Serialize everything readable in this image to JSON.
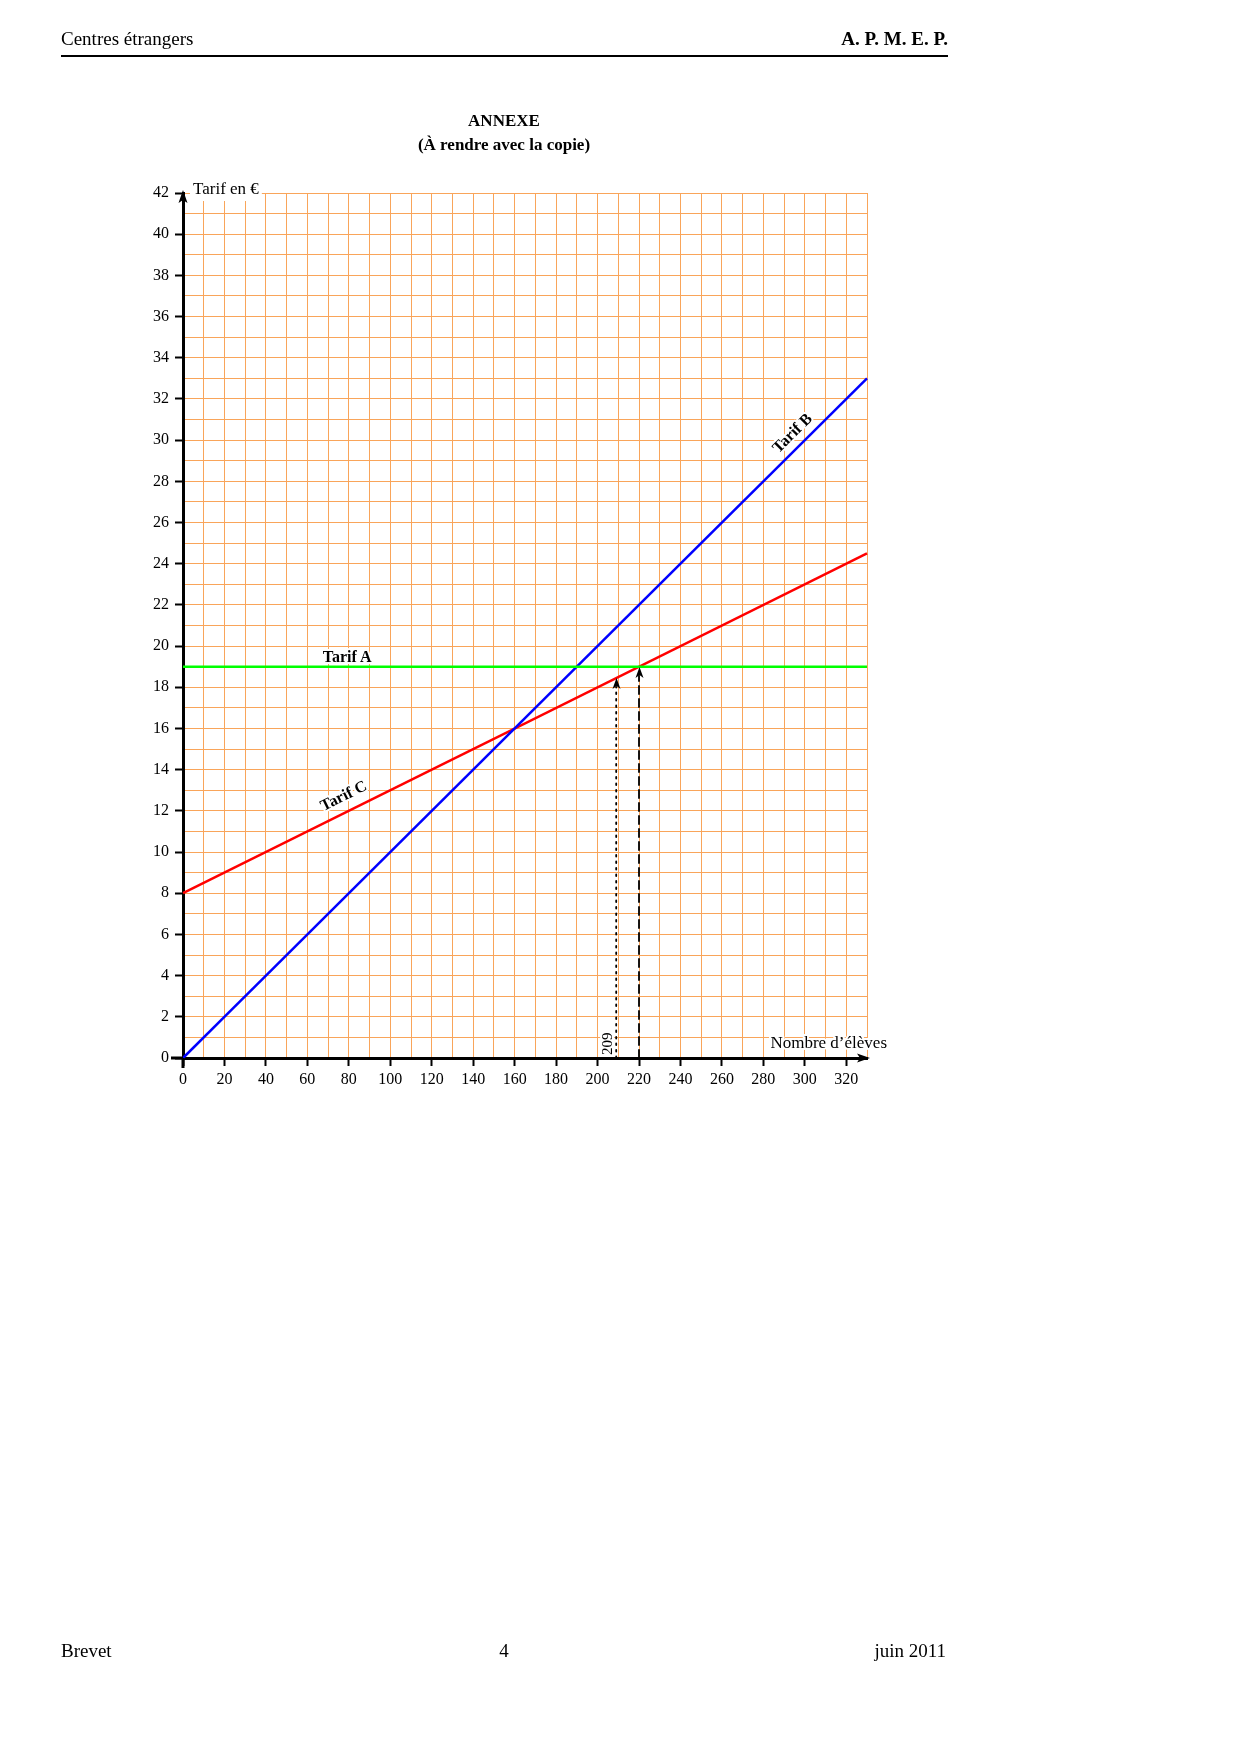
{
  "chart_data": {
    "type": "line",
    "title": "ANNEXE",
    "subtitle": "(À rendre avec la copie)",
    "xlabel": "Nombre d’élèves",
    "ylabel": "Tarif en €",
    "annotations": [
      "Centres étrangers",
      "A. P. M. E. P.",
      "Brevet",
      "4",
      "juin 2011"
    ],
    "x": [
      0,
      330
    ],
    "series": [
      {
        "name": "Tarif A",
        "color": "#00ff00",
        "values": [
          19,
          19
        ]
      },
      {
        "name": "Tarif B",
        "color": "#0000ff",
        "values": [
          0,
          33
        ]
      },
      {
        "name": "Tarif C",
        "color": "#ff0000",
        "values": [
          8,
          24.5
        ]
      }
    ],
    "xlim": [
      0,
      330
    ],
    "ylim": [
      0,
      42
    ],
    "xticks": [
      0,
      {
        "value": 10,
        "label": null
      },
      20,
      {
        "value": 30,
        "label": null
      },
      40,
      {
        "value": 50,
        "label": null
      },
      60,
      {
        "value": 70,
        "label": null
      },
      80,
      {
        "value": 90,
        "label": null
      },
      100,
      {
        "value": 110,
        "label": null
      },
      120,
      {
        "value": 130,
        "label": null
      },
      140,
      {
        "value": 150,
        "label": null
      },
      160,
      {
        "value": 170,
        "label": null
      },
      180,
      {
        "value": 190,
        "label": null
      },
      200,
      {
        "value": 210,
        "label": null
      },
      220,
      {
        "value": 230,
        "label": null
      },
      240,
      {
        "value": 250,
        "label": null
      },
      260,
      {
        "value": 270,
        "label": null
      },
      280,
      {
        "value": 290,
        "label": null
      },
      300,
      {
        "value": 310,
        "label": null
      },
      320,
      {
        "value": 330,
        "label": null
      }
    ],
    "yticks": [
      0,
      {
        "value": 1,
        "label": null
      },
      2,
      {
        "value": 3,
        "label": null
      },
      4,
      {
        "value": 5,
        "label": null
      },
      6,
      {
        "value": 7,
        "label": null
      },
      8,
      {
        "value": 9,
        "label": null
      },
      10,
      {
        "value": 11,
        "label": null
      },
      12,
      {
        "value": 13,
        "label": null
      },
      14,
      {
        "value": 15,
        "label": null
      },
      16,
      {
        "value": 17,
        "label": null
      },
      18,
      {
        "value": 19,
        "label": null
      },
      20,
      {
        "value": 21,
        "label": null
      },
      22,
      {
        "value": 23,
        "label": null
      },
      24,
      {
        "value": 25,
        "label": null
      },
      26,
      {
        "value": 27,
        "label": null
      },
      28,
      {
        "value": 29,
        "label": null
      },
      30,
      {
        "value": 31,
        "label": null
      },
      32,
      {
        "value": 33,
        "label": null
      },
      34,
      {
        "value": 35,
        "label": null
      },
      36,
      {
        "value": 37,
        "label": null
      },
      38,
      {
        "value": 39,
        "label": null
      },
      40,
      {
        "value": 41,
        "label": null
      },
      42
    ],
    "grid": true,
    "legend": false,
    "marker": "none",
    "ref_lines": [
      {
        "axis": "x",
        "value": 209,
        "label": "209",
        "color": "#000000",
        "line_style": "dotted"
      },
      {
        "axis": "x",
        "value": 220,
        "color": "#000000",
        "line_style": "dashed"
      }
    ]
  }
}
